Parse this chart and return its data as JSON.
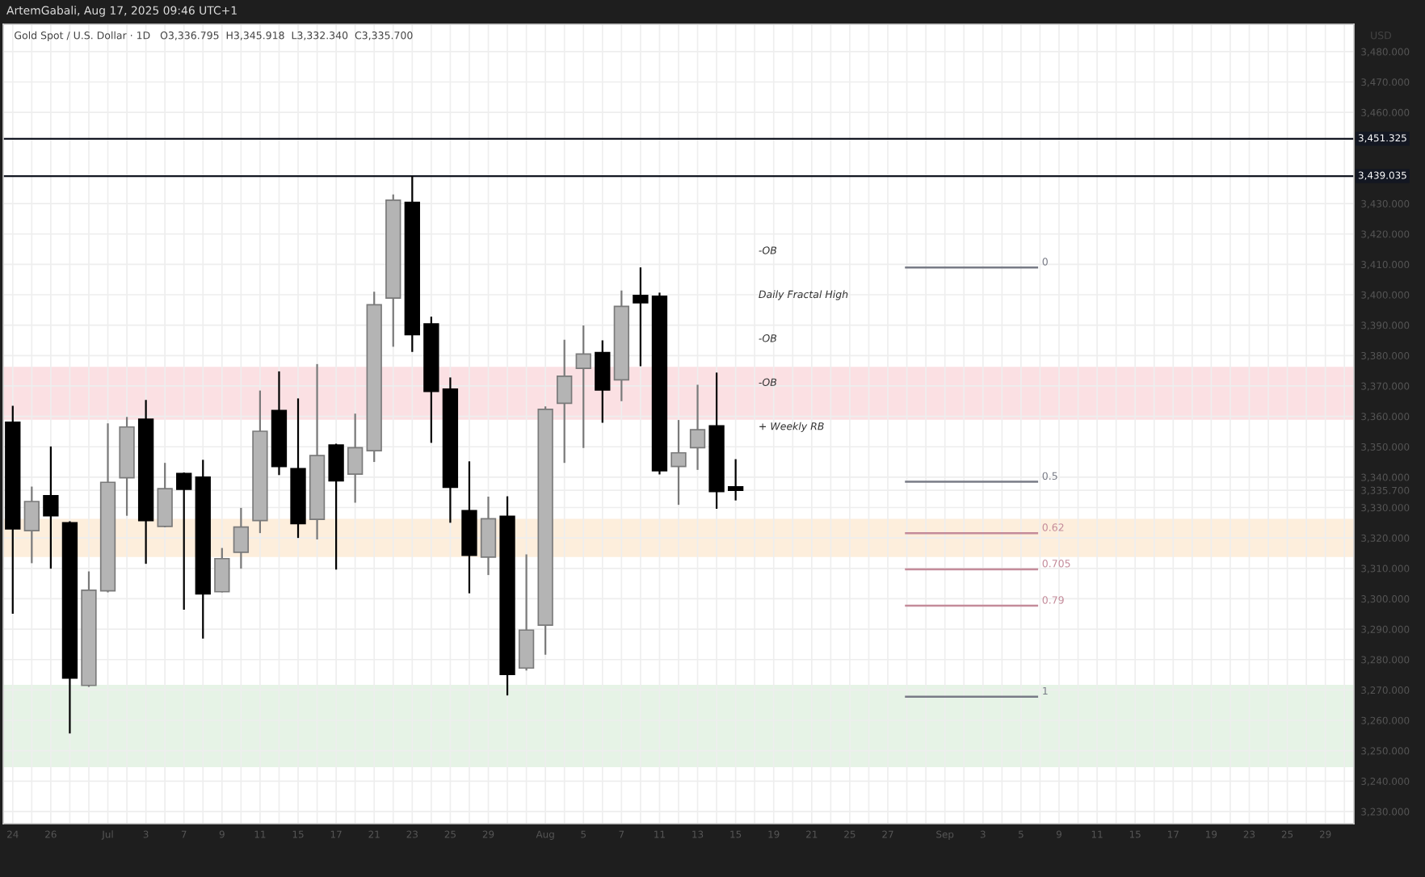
{
  "chart_data": {
    "type": "candlestick",
    "title": "Gold Spot / U.S. Dollar · 1D",
    "subtitle": "O3,336.795  H3,345.918  L3,332.340  C3,335.700",
    "ylabel": "USD",
    "annotations": [
      "ArtemGabali, Aug 17, 2025 09:46 UTC+1",
      "-OB",
      "Daily Fractal High",
      "-OB",
      "-OB",
      "+ Weekly RB",
      "0",
      "0.5",
      "0.62",
      "0.705",
      "0.79",
      "1"
    ],
    "categories": [
      "24",
      null,
      "26",
      null,
      null,
      "Jul",
      null,
      "3",
      null,
      "7",
      null,
      "9",
      null,
      "11",
      null,
      "15",
      null,
      "17",
      null,
      "21",
      null,
      "23",
      null,
      "25",
      null,
      "29",
      null,
      null,
      "Aug",
      null,
      "5",
      null,
      "7",
      null,
      "11",
      null,
      "13",
      null,
      "15",
      null,
      "19",
      null,
      "21",
      null,
      "25",
      null,
      "27",
      null,
      null,
      "Sep",
      null,
      "3",
      null,
      "5",
      null,
      "9",
      null,
      "11",
      null,
      "15",
      null,
      "17",
      null,
      "19",
      null,
      "23",
      null,
      "25",
      null,
      "29",
      null
    ],
    "ohlc": [
      [
        3358.1,
        3363.5,
        3295.1,
        3323.0
      ],
      [
        3322.4,
        3336.9,
        3311.7,
        3332.0
      ],
      [
        3333.9,
        3350.1,
        3309.9,
        3327.3
      ],
      [
        3325.0,
        3325.5,
        3255.7,
        3273.9
      ],
      [
        3271.5,
        3309.0,
        3271.0,
        3302.8
      ],
      [
        3302.6,
        3357.7,
        3302.1,
        3338.3
      ],
      [
        3339.8,
        3359.8,
        3327.3,
        3356.5
      ],
      [
        3359.1,
        3365.4,
        3311.5,
        3325.7
      ],
      [
        3323.8,
        3344.7,
        3323.5,
        3336.2
      ],
      [
        3341.2,
        3341.5,
        3296.4,
        3336.0
      ],
      [
        3340.0,
        3345.7,
        3286.9,
        3301.6
      ],
      [
        3302.3,
        3316.7,
        3302.1,
        3313.2
      ],
      [
        3315.3,
        3329.9,
        3309.9,
        3323.6
      ],
      [
        3325.7,
        3368.5,
        3321.6,
        3355.1
      ],
      [
        3361.9,
        3374.8,
        3340.7,
        3343.5
      ],
      [
        3342.8,
        3365.9,
        3320.0,
        3324.7
      ],
      [
        3326.1,
        3377.2,
        3319.5,
        3347.1
      ],
      [
        3350.6,
        3351.0,
        3309.6,
        3338.8
      ],
      [
        3341.0,
        3360.9,
        3331.6,
        3349.7
      ],
      [
        3348.7,
        3401.0,
        3345.0,
        3396.7
      ],
      [
        3398.9,
        3433.0,
        3382.9,
        3431.1
      ],
      [
        3430.4,
        3439.0,
        3381.2,
        3386.9
      ],
      [
        3390.4,
        3392.8,
        3351.3,
        3368.2
      ],
      [
        3369.0,
        3372.8,
        3325.0,
        3336.7
      ],
      [
        3329.0,
        3345.2,
        3301.8,
        3314.3
      ],
      [
        3313.7,
        3333.6,
        3307.8,
        3326.3
      ],
      [
        3327.1,
        3333.7,
        3268.2,
        3275.1
      ],
      [
        3277.2,
        3314.6,
        3276.4,
        3289.7
      ],
      [
        3291.3,
        3363.3,
        3281.6,
        3362.3
      ],
      [
        3364.3,
        3385.2,
        3344.7,
        3373.2
      ],
      [
        3375.8,
        3389.9,
        3349.6,
        3380.5
      ],
      [
        3381.0,
        3385.0,
        3357.9,
        3368.7
      ],
      [
        3372.0,
        3401.4,
        3365.0,
        3396.2
      ],
      [
        3399.8,
        3409.0,
        3376.5,
        3397.4
      ],
      [
        3399.5,
        3400.7,
        3340.9,
        3342.1
      ],
      [
        3343.5,
        3358.8,
        3330.9,
        3348.0
      ],
      [
        3349.7,
        3370.4,
        3342.4,
        3355.6
      ],
      [
        3356.9,
        3374.4,
        3329.6,
        3335.3
      ],
      [
        3336.795,
        3345.918,
        3332.34,
        3335.7
      ],
      null,
      null,
      null,
      null,
      null,
      null,
      null,
      null,
      null,
      null,
      null,
      null,
      null,
      null,
      null,
      null,
      null,
      null,
      null,
      null,
      null,
      null,
      null,
      null,
      null,
      null,
      null,
      null,
      null,
      null,
      null,
      null
    ],
    "ylim": [
      3226,
      3489
    ],
    "yticks": [
      {
        "value": 3230,
        "label": "3,230.000"
      },
      {
        "value": 3240,
        "label": "3,240.000"
      },
      {
        "value": 3250,
        "label": "3,250.000"
      },
      {
        "value": 3260,
        "label": "3,260.000"
      },
      {
        "value": 3270,
        "label": "3,270.000"
      },
      {
        "value": 3280,
        "label": "3,280.000"
      },
      {
        "value": 3290,
        "label": "3,290.000"
      },
      {
        "value": 3300,
        "label": "3,300.000"
      },
      {
        "value": 3310,
        "label": "3,310.000"
      },
      {
        "value": 3320,
        "label": "3,320.000"
      },
      {
        "value": 3330,
        "label": "3,330.000"
      },
      {
        "value": 3335.7,
        "label": "3,335.700"
      },
      {
        "value": 3340,
        "label": "3,340.000"
      },
      {
        "value": 3350,
        "label": "3,350.000"
      },
      {
        "value": 3360,
        "label": "3,360.000"
      },
      {
        "value": 3370,
        "label": "3,370.000"
      },
      {
        "value": 3380,
        "label": "3,380.000"
      },
      {
        "value": 3390,
        "label": "3,390.000"
      },
      {
        "value": 3400,
        "label": "3,400.000"
      },
      {
        "value": 3410,
        "label": "3,410.000"
      },
      {
        "value": 3420,
        "label": "3,420.000"
      },
      {
        "value": 3430,
        "label": "3,430.000"
      },
      {
        "value": 3460,
        "label": "3,460.000"
      },
      {
        "value": 3470,
        "label": "3,470.000"
      },
      {
        "value": 3480,
        "label": "3,480.000"
      }
    ],
    "ref_lines": [
      {
        "axis": "y",
        "value": 3451.325,
        "label": "3,451.325",
        "color": "#131722"
      },
      {
        "axis": "y",
        "value": 3439.035,
        "label": "3,439.035",
        "color": "#131722"
      },
      {
        "axis": "y",
        "value": 3409,
        "color": "#787b86"
      },
      {
        "axis": "y",
        "value": 3338.5,
        "color": "#787b86"
      },
      {
        "axis": "y",
        "value": 3321.6,
        "color": "#c48b9a"
      },
      {
        "axis": "y",
        "value": 3309.7,
        "color": "#c48b9a"
      },
      {
        "axis": "y",
        "value": 3297.7,
        "color": "#c48b9a"
      },
      {
        "axis": "y",
        "value": 3267.8,
        "color": "#787b86"
      }
    ],
    "bands": [
      {
        "axis": "y",
        "from": 3358.9,
        "to": 3376.3,
        "color": "#fbe0e3"
      },
      {
        "axis": "y",
        "from": 3313.7,
        "to": 3326.3,
        "color": "#fdeedc"
      },
      {
        "axis": "y",
        "from": 3244.6,
        "to": 3271.7,
        "color": "#e6f3e6"
      }
    ],
    "grid": true
  }
}
